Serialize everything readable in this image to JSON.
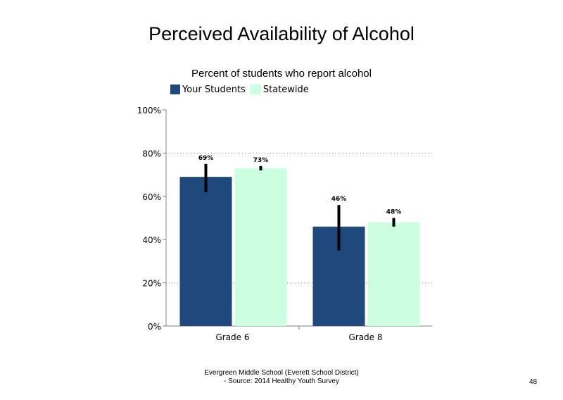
{
  "chart_data": {
    "type": "bar",
    "title": "Perceived Availability of Alcohol",
    "subtitle": "Percent of students who report alcohol",
    "categories": [
      "Grade 6",
      "Grade 8"
    ],
    "series": [
      {
        "name": "Your Students",
        "color": "#1F497D",
        "values": [
          69,
          46
        ],
        "labels": [
          "69%",
          "46%"
        ],
        "error_low": [
          62,
          35
        ],
        "error_high": [
          75,
          56
        ]
      },
      {
        "name": "Statewide",
        "color": "#CCFFE0",
        "values": [
          73,
          48
        ],
        "labels": [
          "73%",
          "48%"
        ],
        "error_low": [
          72,
          46
        ],
        "error_high": [
          74,
          50
        ]
      }
    ],
    "ylim": [
      0,
      100
    ],
    "yticks": [
      0,
      20,
      40,
      60,
      80,
      100
    ],
    "ytick_labels": [
      "0%",
      "20%",
      "40%",
      "60%",
      "80%",
      "100%"
    ],
    "gridlines": [
      20,
      80
    ],
    "grid_style": "dotted",
    "legend": "top-left",
    "error_bars": true
  },
  "footer": {
    "line1": "Evergreen Middle School (Everett School District)",
    "line2": "- Source: 2014 Healthy Youth Survey"
  },
  "page_number": "48"
}
